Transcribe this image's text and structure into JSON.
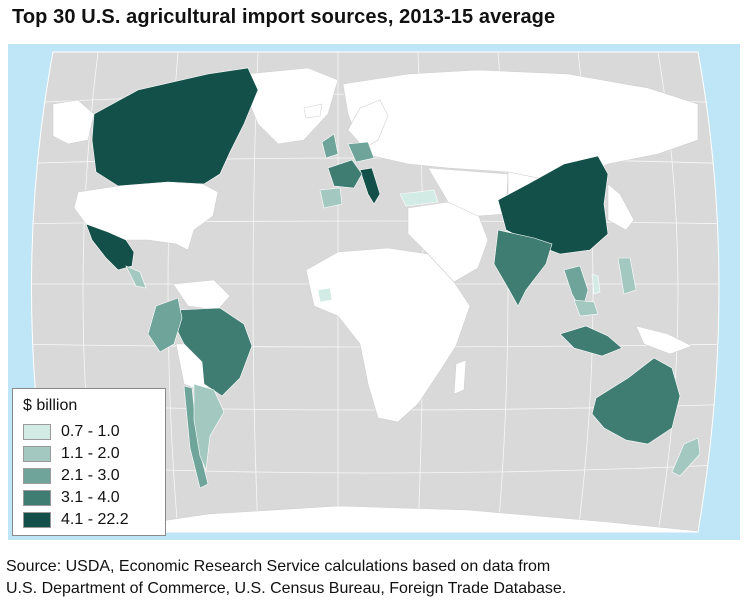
{
  "title": "Top 30 U.S. agricultural import sources, 2013-15 average",
  "legend": {
    "title": "$ billion",
    "bins": [
      {
        "label": "0.7 - 1.0",
        "color": "#d3ebe5"
      },
      {
        "label": "1.1 - 2.0",
        "color": "#a2c8c0"
      },
      {
        "label": "2.1 - 3.0",
        "color": "#6fa49a"
      },
      {
        "label": "3.1 - 4.0",
        "color": "#3f7d73"
      },
      {
        "label": "4.1 - 22.2",
        "color": "#14504a"
      }
    ]
  },
  "colors": {
    "ocean": "#bfe6f6",
    "land": "#d9d9d9",
    "no_data": "#ffffff",
    "outline": "#ffffff"
  },
  "source": {
    "line1": "Source: USDA, Economic Research Service calculations based on data from",
    "line2": "U.S. Department of Commerce, U.S. Census Bureau, Foreign Trade Database."
  }
}
